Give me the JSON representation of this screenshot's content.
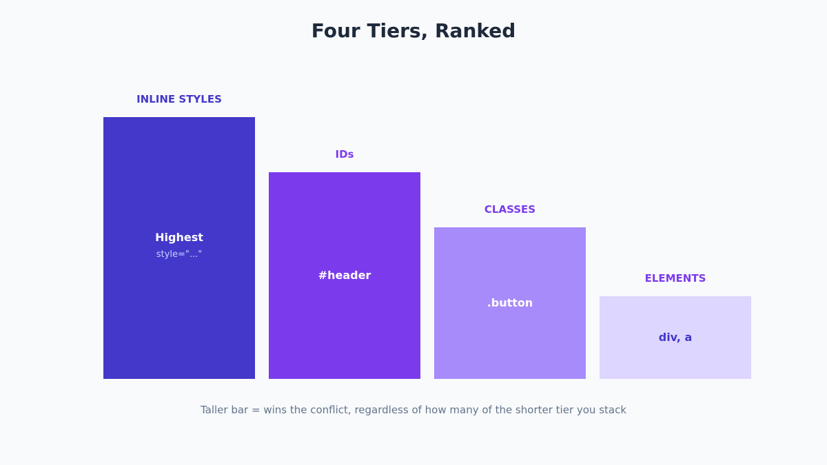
{
  "title": "Four Tiers, Ranked",
  "caption": "Taller bar = wins the conflict, regardless of how many of the shorter tier you stack",
  "tiers": [
    {
      "label": "INLINE STYLES",
      "example": "Highest",
      "example_sub": "style=\"...\"",
      "rank_level": 4,
      "bar_color": "#4338ca",
      "label_color": "#4338ca",
      "text_color": "#ffffff",
      "sub_color": "#c7d2fe"
    },
    {
      "label": "IDs",
      "example": "#header",
      "rank_level": 3,
      "bar_color": "#7c3aed",
      "label_color": "#7c3aed",
      "text_color": "#ffffff"
    },
    {
      "label": "CLASSES",
      "example": ".button",
      "rank_level": 2,
      "bar_color": "#a78bfa",
      "label_color": "#7c3aed",
      "text_color": "#ffffff"
    },
    {
      "label": "ELEMENTS",
      "example": "div, a",
      "rank_level": 1,
      "bar_color": "#ddd6fe",
      "label_color": "#7c3aed",
      "text_color": "#4338ca"
    }
  ]
}
